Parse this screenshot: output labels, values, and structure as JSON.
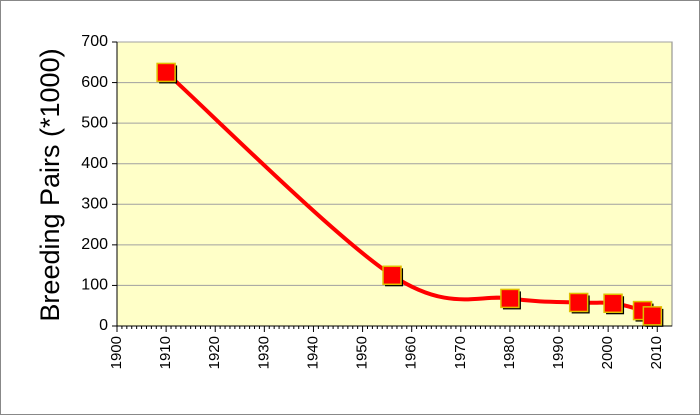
{
  "chart_data": {
    "type": "line",
    "y_label": "Breeding Pairs  (*1000)",
    "x": [
      1910,
      1956,
      1980,
      1994,
      2001,
      2007,
      2009
    ],
    "series": [
      {
        "color": "#ff0000",
        "values": [
          625,
          125,
          68,
          58,
          56,
          38,
          25
        ]
      }
    ],
    "xlim": [
      1900,
      2013
    ],
    "xticks": [
      1900,
      1910,
      1920,
      1930,
      1940,
      1950,
      1960,
      1970,
      1980,
      1990,
      2000,
      2010
    ],
    "ylim": [
      0,
      700
    ],
    "yticks": [
      0,
      100,
      200,
      300,
      400,
      500,
      600,
      700
    ],
    "grid": true,
    "smooth": true,
    "plot_background": "#ffffc8"
  }
}
